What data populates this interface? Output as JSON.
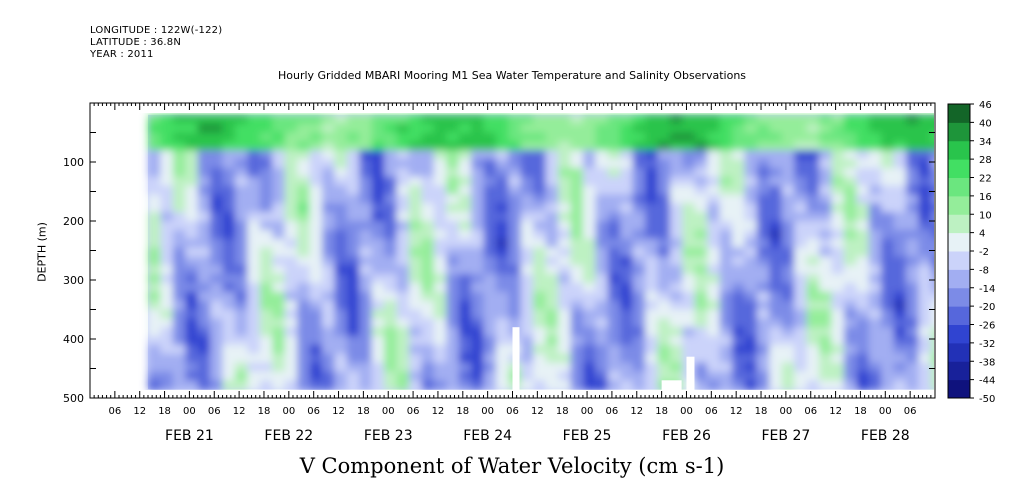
{
  "header": {
    "longitude": "LONGITUDE : 122W(-122)",
    "latitude": "LATITUDE : 36.8N",
    "year": "YEAR : 2011"
  },
  "chart_data": {
    "type": "heatmap",
    "title": "Hourly Gridded MBARI Mooring M1 Sea Water Temperature and Salinity Observations",
    "xlabel": "V Component of Water Velocity (cm s-1)",
    "ylabel": "DEPTH (m)",
    "variable": "V Component of Water Velocity",
    "units": "cm s-1",
    "y_axis": {
      "range": [
        500,
        0
      ],
      "ticks": [
        100,
        200,
        300,
        400,
        500
      ],
      "reversed": true
    },
    "x_axis": {
      "start": "2011-02-20 00:00",
      "end": "2011-02-28 12:00",
      "hour_ticks": [
        "06",
        "12",
        "18",
        "00",
        "06",
        "12",
        "18",
        "00",
        "06",
        "12",
        "18",
        "00",
        "06",
        "12",
        "18",
        "00",
        "06",
        "12",
        "18",
        "00",
        "06",
        "12",
        "18",
        "00",
        "06",
        "12",
        "18",
        "00",
        "06",
        "12",
        "18",
        "00",
        "06"
      ],
      "day_labels": [
        "FEB 21",
        "FEB 22",
        "FEB 23",
        "FEB 24",
        "FEB 25",
        "FEB 26",
        "FEB 27",
        "FEB 28"
      ]
    },
    "data_extent": {
      "start": "2011-02-20 14:00",
      "end": "2011-02-28 12:00",
      "depth_min": 20,
      "depth_max": 485
    },
    "colorbar": {
      "levels": [
        -50,
        -44,
        -38,
        -32,
        -26,
        -20,
        -14,
        -8,
        -2,
        4,
        10,
        16,
        22,
        28,
        34,
        40,
        46
      ],
      "tick_labels": [
        "46",
        "40",
        "34",
        "28",
        "22",
        "16",
        "10",
        "4",
        "-2",
        "-8",
        "-14",
        "-20",
        "-26",
        "-32",
        "-38",
        "-44",
        "-50"
      ],
      "colors": {
        "very_negative": "#0a0a6e",
        "negative": "#2a3ecf",
        "slightly_negative": "#a8b4f4",
        "near_zero": "#eef2ff",
        "slightly_positive": "#a8f0a8",
        "positive": "#2edc55",
        "very_positive": "#0d4d1f"
      }
    }
  }
}
